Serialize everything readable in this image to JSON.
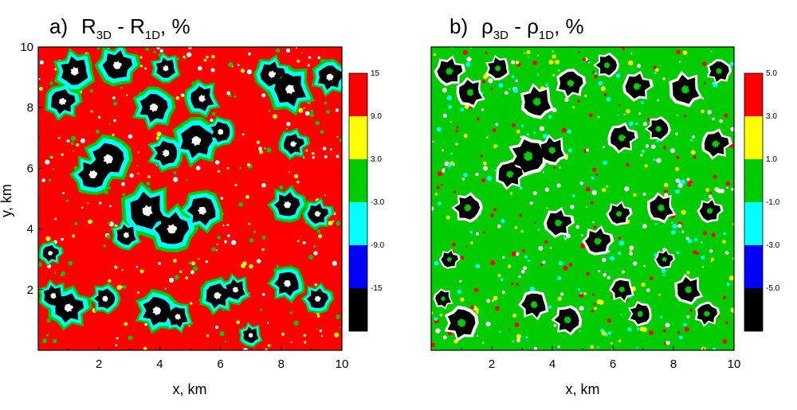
{
  "chart_data": [
    {
      "type": "heatmap",
      "panel_label": "a)",
      "title": {
        "main": "R",
        "sub1": "3D",
        "mid": " - R",
        "sub2": "1D",
        "unit": ", %"
      },
      "xlabel": "x, km",
      "ylabel": "y, km",
      "xlim": [
        0,
        10
      ],
      "ylim": [
        0,
        10
      ],
      "xticks": [
        "2",
        "4",
        "6",
        "8",
        "10"
      ],
      "yticks": [
        "2",
        "4",
        "6",
        "8",
        "10"
      ],
      "legend": {
        "placement": "right",
        "labels": [
          "15",
          "9.0",
          "3.0",
          "-3.0",
          "-9.0",
          "-15"
        ],
        "colors": [
          "#ff0000",
          "#ffff00",
          "#00cc00",
          "#00ffff",
          "#0000ff",
          "#000000"
        ]
      },
      "background_color": "#ff0000",
      "clouds": [
        {
          "x": 1.2,
          "y": 9.2,
          "r": 0.7
        },
        {
          "x": 0.8,
          "y": 8.2,
          "r": 0.6
        },
        {
          "x": 2.6,
          "y": 9.4,
          "r": 0.7
        },
        {
          "x": 4.2,
          "y": 9.3,
          "r": 0.5
        },
        {
          "x": 3.8,
          "y": 8.0,
          "r": 0.7
        },
        {
          "x": 5.4,
          "y": 8.3,
          "r": 0.6
        },
        {
          "x": 7.7,
          "y": 9.1,
          "r": 0.6
        },
        {
          "x": 8.3,
          "y": 8.6,
          "r": 0.8
        },
        {
          "x": 9.6,
          "y": 9.0,
          "r": 0.6
        },
        {
          "x": 2.3,
          "y": 6.3,
          "r": 0.8
        },
        {
          "x": 1.8,
          "y": 5.8,
          "r": 0.7
        },
        {
          "x": 4.2,
          "y": 6.5,
          "r": 0.6
        },
        {
          "x": 5.2,
          "y": 6.9,
          "r": 0.8
        },
        {
          "x": 6.0,
          "y": 7.2,
          "r": 0.5
        },
        {
          "x": 8.4,
          "y": 6.8,
          "r": 0.5
        },
        {
          "x": 3.6,
          "y": 4.6,
          "r": 0.9
        },
        {
          "x": 4.4,
          "y": 4.0,
          "r": 0.8
        },
        {
          "x": 5.4,
          "y": 4.6,
          "r": 0.7
        },
        {
          "x": 2.9,
          "y": 3.8,
          "r": 0.5
        },
        {
          "x": 8.2,
          "y": 4.8,
          "r": 0.6
        },
        {
          "x": 9.2,
          "y": 4.5,
          "r": 0.5
        },
        {
          "x": 0.4,
          "y": 3.2,
          "r": 0.4
        },
        {
          "x": 1.0,
          "y": 1.4,
          "r": 0.7
        },
        {
          "x": 0.5,
          "y": 1.8,
          "r": 0.5
        },
        {
          "x": 2.2,
          "y": 1.7,
          "r": 0.5
        },
        {
          "x": 3.9,
          "y": 1.3,
          "r": 0.7
        },
        {
          "x": 4.6,
          "y": 1.1,
          "r": 0.5
        },
        {
          "x": 5.9,
          "y": 1.8,
          "r": 0.6
        },
        {
          "x": 6.5,
          "y": 2.0,
          "r": 0.5
        },
        {
          "x": 8.2,
          "y": 2.2,
          "r": 0.6
        },
        {
          "x": 9.2,
          "y": 1.7,
          "r": 0.5
        },
        {
          "x": 7.0,
          "y": 0.5,
          "r": 0.4
        }
      ]
    },
    {
      "type": "heatmap",
      "panel_label": "b)",
      "title": {
        "main": "ρ",
        "sub1": "3D",
        "mid": " - ρ",
        "sub2": "1D",
        "unit": ", %"
      },
      "xlabel": "x, km",
      "ylabel": "",
      "xlim": [
        0,
        10
      ],
      "ylim": [
        0,
        10
      ],
      "xticks": [
        "2",
        "4",
        "6",
        "8",
        "10"
      ],
      "yticks": [],
      "legend": {
        "placement": "right",
        "labels": [
          "5.0",
          "3.0",
          "1.0",
          "-1.0",
          "-3.0",
          "-5.0"
        ],
        "colors": [
          "#ff0000",
          "#ffff00",
          "#00cc00",
          "#00ffff",
          "#0000ff",
          "#000000"
        ]
      },
      "background_color": "#00cc00",
      "clouds": [
        {
          "x": 0.6,
          "y": 9.2,
          "r": 0.6
        },
        {
          "x": 1.3,
          "y": 8.5,
          "r": 0.6
        },
        {
          "x": 2.2,
          "y": 9.3,
          "r": 0.5
        },
        {
          "x": 3.5,
          "y": 8.2,
          "r": 0.7
        },
        {
          "x": 4.6,
          "y": 8.8,
          "r": 0.6
        },
        {
          "x": 5.8,
          "y": 9.4,
          "r": 0.5
        },
        {
          "x": 6.8,
          "y": 8.7,
          "r": 0.6
        },
        {
          "x": 8.4,
          "y": 8.6,
          "r": 0.7
        },
        {
          "x": 9.5,
          "y": 9.2,
          "r": 0.5
        },
        {
          "x": 3.2,
          "y": 6.4,
          "r": 0.8
        },
        {
          "x": 2.6,
          "y": 5.8,
          "r": 0.6
        },
        {
          "x": 4.0,
          "y": 6.6,
          "r": 0.6
        },
        {
          "x": 6.3,
          "y": 7.0,
          "r": 0.6
        },
        {
          "x": 7.5,
          "y": 7.3,
          "r": 0.5
        },
        {
          "x": 9.4,
          "y": 6.8,
          "r": 0.6
        },
        {
          "x": 1.2,
          "y": 4.7,
          "r": 0.6
        },
        {
          "x": 4.2,
          "y": 4.2,
          "r": 0.6
        },
        {
          "x": 5.5,
          "y": 3.6,
          "r": 0.6
        },
        {
          "x": 6.2,
          "y": 4.5,
          "r": 0.5
        },
        {
          "x": 7.6,
          "y": 4.7,
          "r": 0.6
        },
        {
          "x": 9.2,
          "y": 4.6,
          "r": 0.5
        },
        {
          "x": 0.6,
          "y": 3.0,
          "r": 0.4
        },
        {
          "x": 1.0,
          "y": 0.9,
          "r": 0.7
        },
        {
          "x": 0.4,
          "y": 1.7,
          "r": 0.4
        },
        {
          "x": 3.4,
          "y": 1.5,
          "r": 0.6
        },
        {
          "x": 4.5,
          "y": 1.0,
          "r": 0.6
        },
        {
          "x": 6.3,
          "y": 2.0,
          "r": 0.5
        },
        {
          "x": 6.9,
          "y": 1.2,
          "r": 0.5
        },
        {
          "x": 8.5,
          "y": 2.0,
          "r": 0.6
        },
        {
          "x": 9.1,
          "y": 1.2,
          "r": 0.5
        },
        {
          "x": 7.7,
          "y": 3.0,
          "r": 0.4
        }
      ]
    }
  ]
}
